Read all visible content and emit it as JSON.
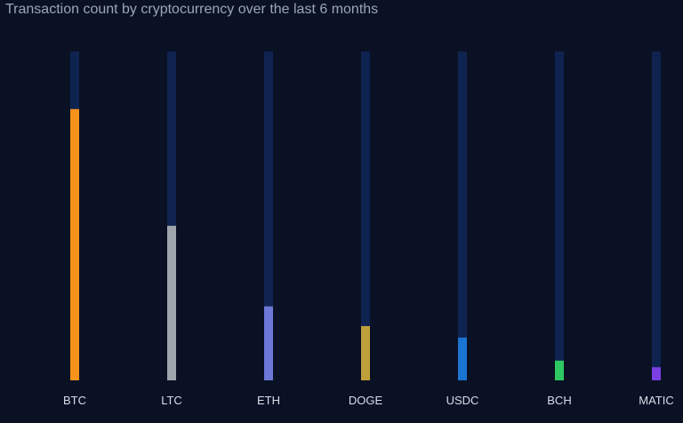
{
  "chart_data": {
    "type": "bar",
    "title": "Transaction count by cryptocurrency over the last 6 months",
    "categories": [
      "BTC",
      "LTC",
      "ETH",
      "DOGE",
      "USDC",
      "BCH",
      "MATIC"
    ],
    "values": [
      82.5,
      47,
      22.5,
      16.5,
      13,
      6,
      4
    ],
    "ylim": [
      0,
      100
    ],
    "track_color": "#0f2350",
    "colors": [
      "#f7931a",
      "#9fa6ab",
      "#6c78d8",
      "#bf9f3a",
      "#1a74d2",
      "#2ec862",
      "#7b3fe4"
    ],
    "grid": false,
    "legend": "none"
  }
}
